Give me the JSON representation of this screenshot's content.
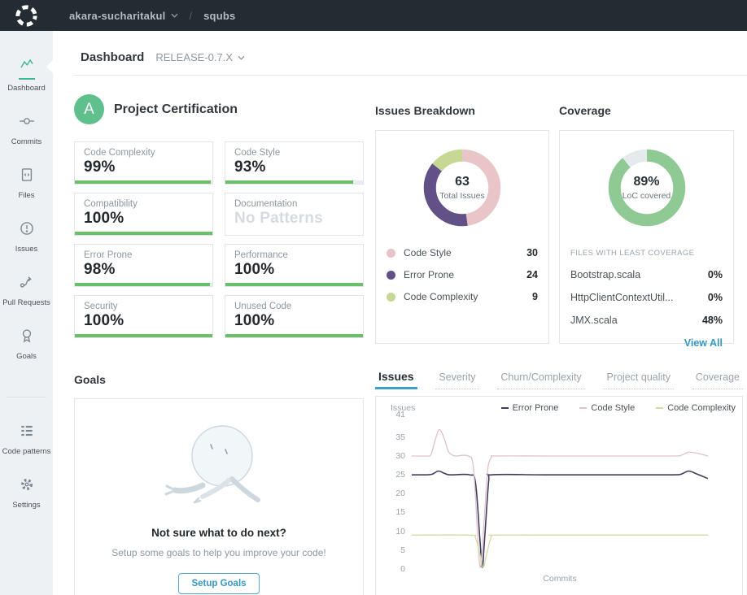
{
  "topbar": {
    "org": "akara-sucharitakul",
    "separator": "/",
    "repo": "squbs"
  },
  "sidebar": {
    "items": [
      {
        "label": "Dashboard",
        "active": true
      },
      {
        "label": "Commits"
      },
      {
        "label": "Files"
      },
      {
        "label": "Issues"
      },
      {
        "label": "Pull Requests"
      },
      {
        "label": "Goals"
      }
    ],
    "bottom_items": [
      {
        "label": "Code patterns"
      },
      {
        "label": "Settings"
      }
    ]
  },
  "header": {
    "title": "Dashboard",
    "branch": "RELEASE-0.7.X"
  },
  "certification": {
    "grade": "A",
    "title": "Project Certification",
    "bar_color": "#6abf69",
    "badge_color": "#5fc08d",
    "metrics": [
      {
        "label": "Code Complexity",
        "value": "99%",
        "percent": 99
      },
      {
        "label": "Code Style",
        "value": "93%",
        "percent": 93
      },
      {
        "label": "Compatibility",
        "value": "100%",
        "percent": 100
      },
      {
        "label": "Documentation",
        "value": "No Patterns",
        "percent": null
      },
      {
        "label": "Error Prone",
        "value": "98%",
        "percent": 98
      },
      {
        "label": "Performance",
        "value": "100%",
        "percent": 100
      },
      {
        "label": "Security",
        "value": "100%",
        "percent": 100
      },
      {
        "label": "Unused Code",
        "value": "100%",
        "percent": 100
      }
    ]
  },
  "issues_breakdown": {
    "title": "Issues Breakdown"
  },
  "coverage": {
    "title": "Coverage",
    "files_header": "FILES WITH LEAST COVERAGE",
    "files": [
      {
        "name": "Bootstrap.scala",
        "value": "0%"
      },
      {
        "name": "HttpClientContextUtil...",
        "value": "0%"
      },
      {
        "name": "JMX.scala",
        "value": "48%"
      }
    ],
    "view_all": "View All",
    "link_color": "#3598c2"
  },
  "goals": {
    "title": "Goals",
    "heading": "Not sure what to do next?",
    "subtext": "Setup some goals to help you improve your code!",
    "button_label": "Setup Goals"
  },
  "trends": {
    "tabs": [
      "Issues",
      "Severity",
      "Churn/Complexity",
      "Project quality",
      "Coverage"
    ],
    "active_tab": "Issues"
  },
  "chart_data": [
    {
      "type": "donut",
      "title": "Issues Breakdown",
      "center_value": "63",
      "center_label": "Total Issues",
      "segments": [
        {
          "label": "Code Style",
          "value": 30,
          "color": "#e9c5c8"
        },
        {
          "label": "Error Prone",
          "value": 24,
          "color": "#615186"
        },
        {
          "label": "Code Complexity",
          "value": 9,
          "color": "#c6d893"
        }
      ]
    },
    {
      "type": "donut",
      "title": "Coverage",
      "center_value": "89%",
      "center_label": "LoC covered",
      "segments": [
        {
          "label": "covered",
          "value": 89,
          "color": "#8fc993"
        },
        {
          "label": "uncovered",
          "value": 11,
          "color": "#e5eaec"
        }
      ]
    },
    {
      "type": "line",
      "title": "Issues over commits",
      "ylabel": "Issues",
      "xlabel": "Commits",
      "ylim": [
        0,
        41
      ],
      "yticks": [
        41,
        35,
        30,
        25,
        20,
        15,
        10,
        5,
        0
      ],
      "grid": false,
      "legend_position": "top-right",
      "series": [
        {
          "name": "Error Prone",
          "color": "#3f3a5f",
          "points": [
            [
              0,
              25
            ],
            [
              5,
              25
            ],
            [
              7,
              25.2
            ],
            [
              9,
              26
            ],
            [
              11,
              25.4
            ],
            [
              13,
              25
            ],
            [
              19.5,
              25
            ],
            [
              21.5,
              23
            ],
            [
              23,
              8
            ],
            [
              23.8,
              0.4
            ],
            [
              24.6,
              8
            ],
            [
              26,
              23.5
            ],
            [
              27,
              25
            ],
            [
              45,
              25
            ],
            [
              70,
              25
            ],
            [
              88,
              25
            ],
            [
              91,
              25.2
            ],
            [
              93.5,
              26
            ],
            [
              96,
              25.3
            ],
            [
              100,
              24
            ]
          ]
        },
        {
          "name": "Code Style",
          "color": "#e0c2c8",
          "points": [
            [
              0,
              30
            ],
            [
              5,
              30
            ],
            [
              6.5,
              30.4
            ],
            [
              8,
              34.5
            ],
            [
              9.3,
              37
            ],
            [
              10.8,
              35
            ],
            [
              12.3,
              31.3
            ],
            [
              13.8,
              30.2
            ],
            [
              15,
              30
            ],
            [
              19,
              30
            ],
            [
              20.8,
              27
            ],
            [
              22.3,
              8
            ],
            [
              23.2,
              0.4
            ],
            [
              24.2,
              10
            ],
            [
              25.6,
              26
            ],
            [
              27,
              29.7
            ],
            [
              28.5,
              30
            ],
            [
              45,
              30
            ],
            [
              70,
              30
            ],
            [
              88,
              30
            ],
            [
              91,
              30.2
            ],
            [
              93.5,
              31
            ],
            [
              96.5,
              30.7
            ],
            [
              100,
              30
            ]
          ]
        },
        {
          "name": "Code Complexity",
          "color": "#d5d9a2",
          "points": [
            [
              0,
              9
            ],
            [
              19.5,
              9
            ],
            [
              21.5,
              8.3
            ],
            [
              23,
              4
            ],
            [
              24.1,
              0.3
            ],
            [
              25.3,
              4
            ],
            [
              26.8,
              8.5
            ],
            [
              28,
              9
            ],
            [
              50,
              9
            ],
            [
              100,
              9
            ]
          ]
        }
      ]
    }
  ]
}
